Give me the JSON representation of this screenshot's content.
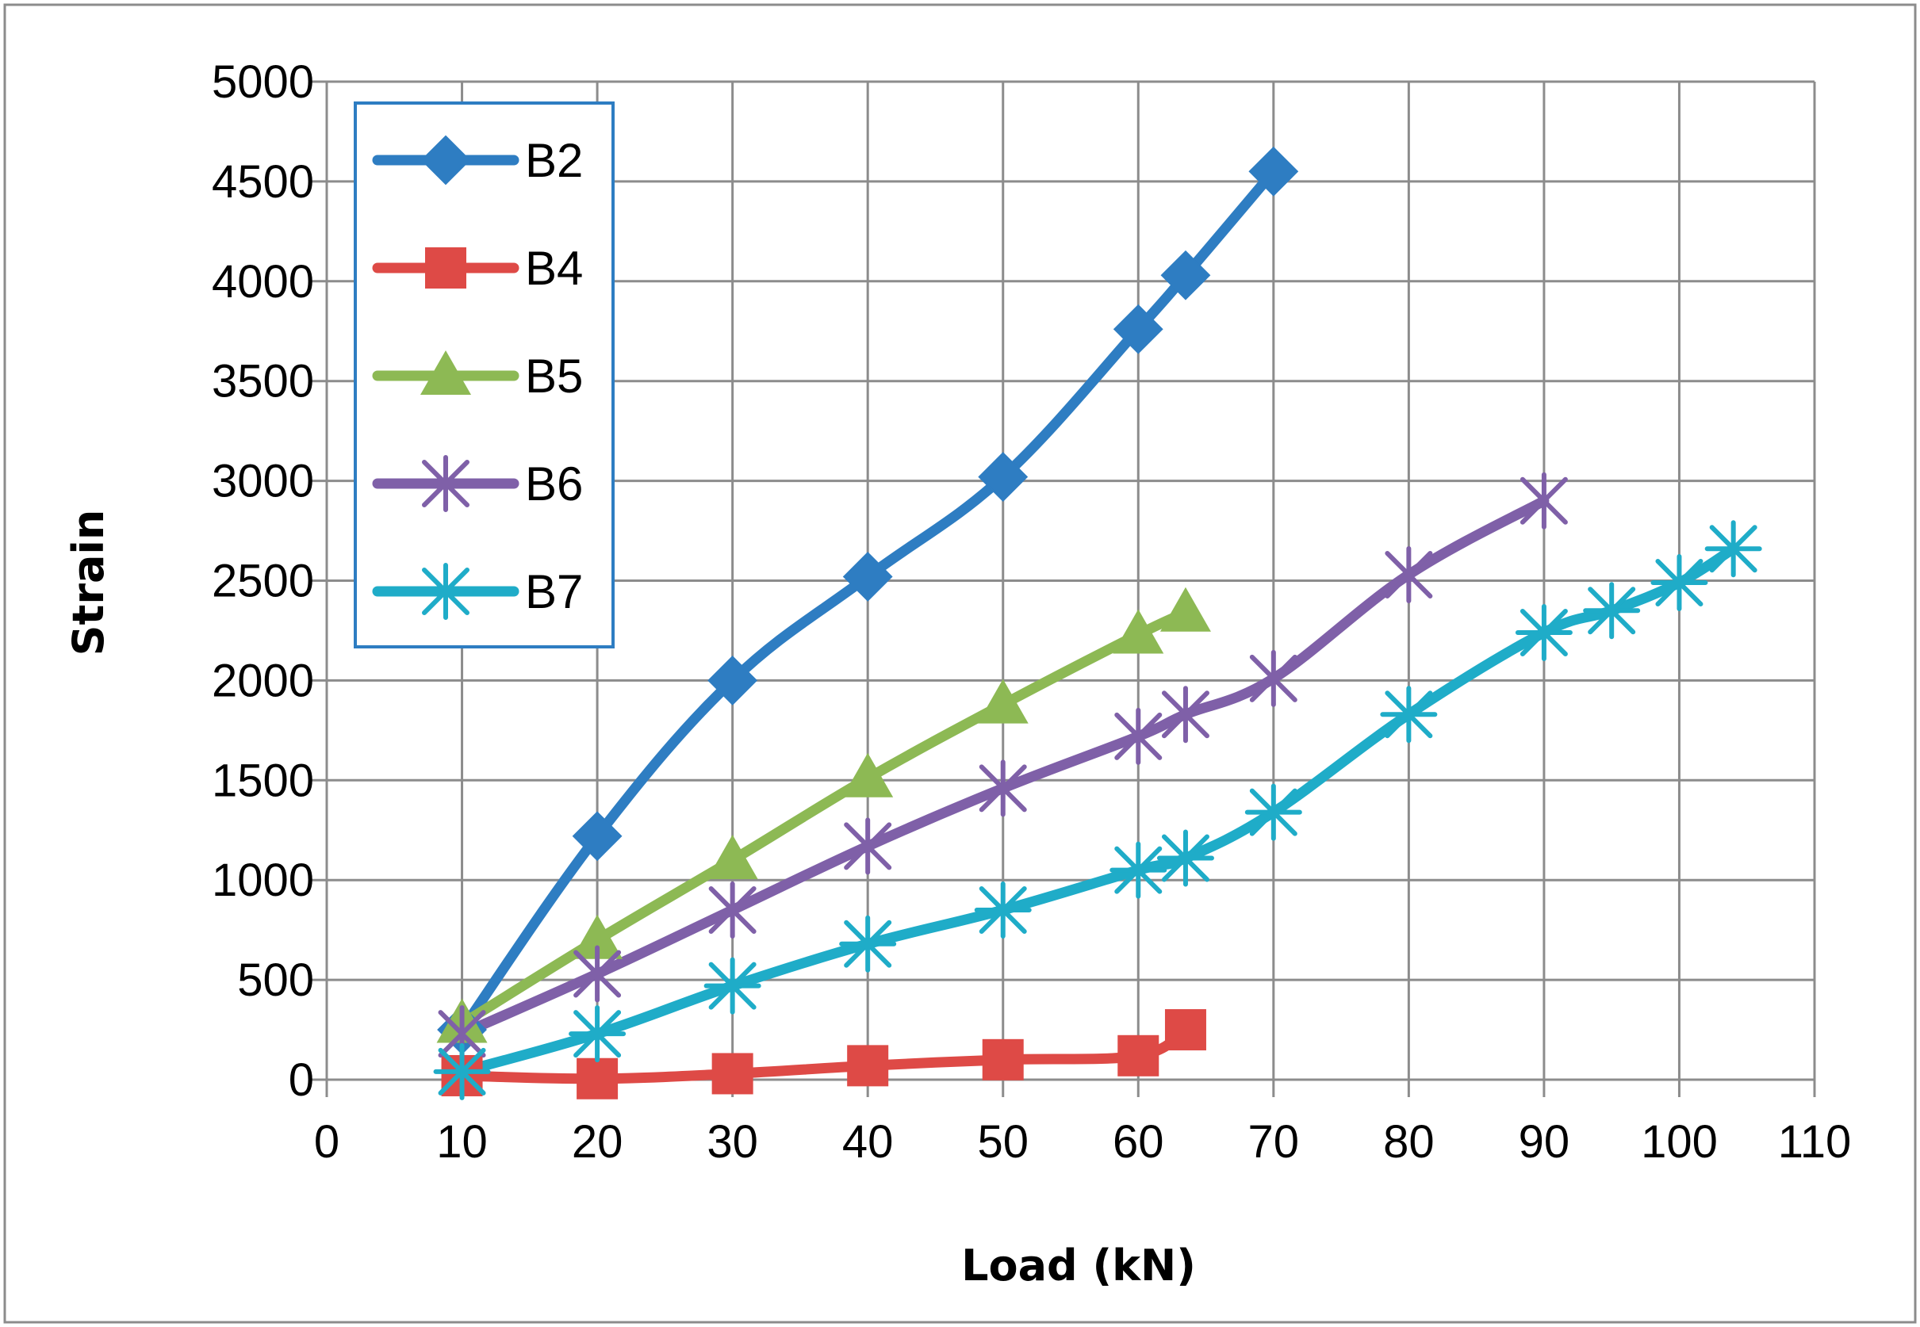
{
  "chart_data": {
    "type": "line",
    "title": "",
    "xlabel": "Load (kN)",
    "ylabel": "Strain",
    "xlim": [
      0,
      110
    ],
    "ylim": [
      0,
      5000
    ],
    "x_ticks": [
      "0",
      "10",
      "20",
      "30",
      "40",
      "50",
      "60",
      "70",
      "80",
      "90",
      "100",
      "110"
    ],
    "y_ticks": [
      "0",
      "500",
      "1000",
      "1500",
      "2000",
      "2500",
      "3000",
      "3500",
      "4000",
      "4500",
      "5000"
    ],
    "grid": true,
    "legend_position": "top-left",
    "series": [
      {
        "name": "B2",
        "color": "#2E7DC2",
        "marker": "diamond",
        "x": [
          10,
          20,
          30,
          40,
          50,
          60,
          63.5,
          70
        ],
        "y": [
          250,
          1220,
          2000,
          2520,
          3020,
          3760,
          4030,
          4550
        ]
      },
      {
        "name": "B4",
        "color": "#DE4A46",
        "marker": "square",
        "x": [
          10,
          20,
          30,
          40,
          50,
          60,
          63.5
        ],
        "y": [
          20,
          5,
          30,
          70,
          100,
          120,
          250
        ]
      },
      {
        "name": "B5",
        "color": "#8DB954",
        "marker": "triangle",
        "x": [
          10,
          20,
          30,
          40,
          50,
          60,
          63.5
        ],
        "y": [
          280,
          700,
          1100,
          1510,
          1880,
          2230,
          2340
        ]
      },
      {
        "name": "B6",
        "color": "#7F60A8",
        "marker": "star",
        "x": [
          10,
          20,
          30,
          40,
          50,
          60,
          63.5,
          70,
          80,
          90
        ],
        "y": [
          230,
          530,
          850,
          1170,
          1460,
          1720,
          1830,
          2010,
          2530,
          2900
        ]
      },
      {
        "name": "B7",
        "color": "#1FACC8",
        "marker": "asterisk",
        "x": [
          10,
          20,
          30,
          40,
          50,
          60,
          63.5,
          70,
          80,
          90,
          95,
          100,
          104
        ],
        "y": [
          40,
          230,
          470,
          680,
          850,
          1050,
          1110,
          1340,
          1830,
          2240,
          2350,
          2490,
          2660
        ]
      }
    ]
  }
}
